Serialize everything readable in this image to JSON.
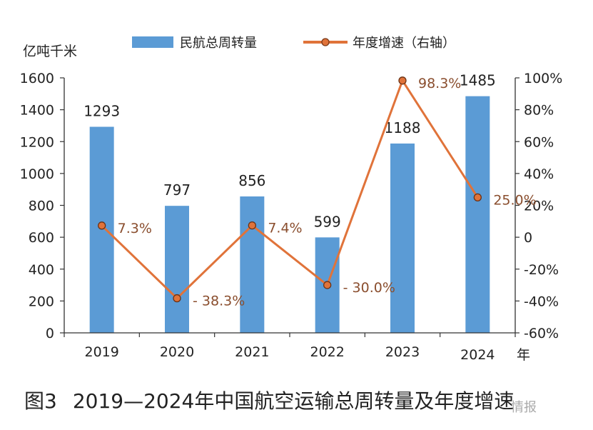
{
  "chart_data": {
    "type": "bar",
    "categories": [
      "2019",
      "2020",
      "2021",
      "2022",
      "2023",
      "2024"
    ],
    "x_unit": "年",
    "series": [
      {
        "name": "民航总周转量",
        "type": "bar",
        "axis": "left",
        "values": [
          1293,
          797,
          856,
          599,
          1188,
          1485
        ],
        "labels": [
          "1293",
          "797",
          "856",
          "599",
          "1188",
          "1485"
        ],
        "color": "#5b9bd5"
      },
      {
        "name": "年度增速（右轴）",
        "type": "line",
        "axis": "right",
        "values": [
          7.3,
          -38.3,
          7.4,
          -30.0,
          98.3,
          25.0
        ],
        "labels": [
          "7.3%",
          "- 38.3%",
          "7.4%",
          "- 30.0%",
          "98.3%",
          "25.0%"
        ],
        "color": "#e0733a"
      }
    ],
    "ylabel": "亿吨千米",
    "ylim": [
      0,
      1600
    ],
    "y_ticks": [
      "0",
      "200",
      "400",
      "600",
      "800",
      "1000",
      "1200",
      "1400",
      "1600"
    ],
    "y2lim": [
      -60,
      100
    ],
    "y2_ticks": [
      "-60%",
      "-40%",
      "-20%",
      "0",
      "20%",
      "40%",
      "60%",
      "80%",
      "100%"
    ],
    "legend_position": "top",
    "grid": false
  },
  "caption": {
    "number": "图3",
    "text": "2019—2024年中国航空运输总周转量及年度增速"
  },
  "watermark": "情报"
}
